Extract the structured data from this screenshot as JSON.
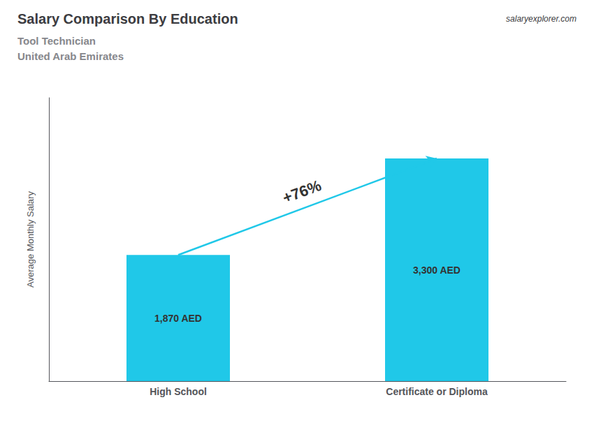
{
  "chart_data": {
    "type": "bar",
    "title": "Salary Comparison By Education",
    "subtitle": [
      "Tool Technician",
      "United Arab Emirates"
    ],
    "ylabel": "Average Monthly Salary",
    "categories": [
      "High School",
      "Certificate or Diploma"
    ],
    "values": [
      1870,
      3300
    ],
    "value_labels": [
      "1,870 AED",
      "3,300 AED"
    ],
    "data_labels": true,
    "color": "#20C8E8",
    "ylim": [
      0,
      4200
    ],
    "tick_labels": "x",
    "grid": false,
    "annotations": [
      "+76%",
      "salaryexplorer.com"
    ]
  }
}
